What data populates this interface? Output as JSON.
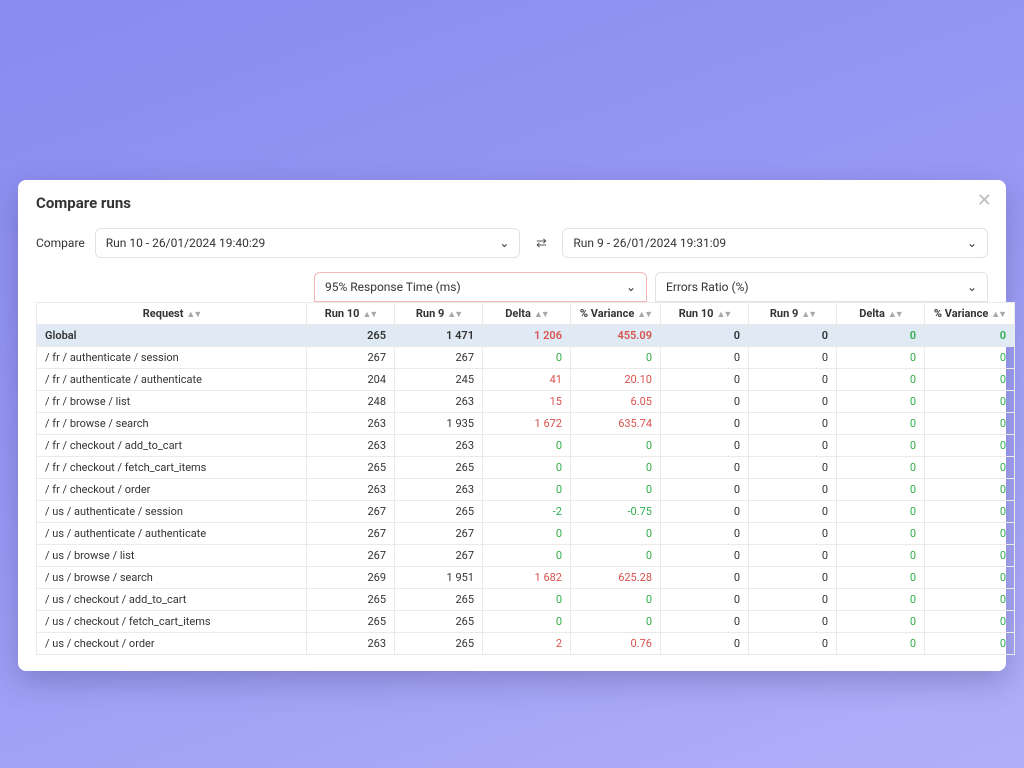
{
  "title": "Compare runs",
  "compareLabel": "Compare",
  "runA": "Run 10 - 26/01/2024 19:40:29",
  "runB": "Run 9 - 26/01/2024 19:31:09",
  "metricA": "95% Response Time (ms)",
  "metricB": "Errors Ratio (%)",
  "headers": {
    "request": "Request",
    "run10": "Run 10",
    "run9": "Run 9",
    "delta": "Delta",
    "variance": "% Variance"
  },
  "columnWidths": {
    "request": 270,
    "run": 88,
    "delta": 88,
    "variance": 90
  },
  "colors": {
    "pageBgFrom": "#8a8af0",
    "pageBgTo": "#b0b0f8",
    "panelBg": "#ffffff",
    "border": "#eaeaea",
    "selectBorder": "#e2e2e2",
    "metricLeftBorder": "#f4b6b6",
    "globalRowBg": "#dfeaf4",
    "text": "#333333",
    "positive": "#2fae4e",
    "negative": "#d9534f",
    "sortIcon": "#a8a8a8",
    "closeIcon": "#bdbdbd"
  },
  "typography": {
    "titleSize": 15,
    "titleWeight": 700,
    "bodySize": 12,
    "tableSize": 11
  },
  "rows": [
    {
      "request": "Global",
      "global": true,
      "a": {
        "run10": "265",
        "run9": "1 471",
        "delta": "1 206",
        "deltaSign": "neg",
        "variance": "455.09",
        "varSign": "neg"
      },
      "b": {
        "run10": "0",
        "run9": "0",
        "delta": "0",
        "deltaSign": "pos",
        "variance": "0",
        "varSign": "pos"
      }
    },
    {
      "request": "/ fr / authenticate / session",
      "a": {
        "run10": "267",
        "run9": "267",
        "delta": "0",
        "deltaSign": "pos",
        "variance": "0",
        "varSign": "pos"
      },
      "b": {
        "run10": "0",
        "run9": "0",
        "delta": "0",
        "deltaSign": "pos",
        "variance": "0",
        "varSign": "pos"
      }
    },
    {
      "request": "/ fr / authenticate / authenticate",
      "a": {
        "run10": "204",
        "run9": "245",
        "delta": "41",
        "deltaSign": "neg",
        "variance": "20.10",
        "varSign": "neg"
      },
      "b": {
        "run10": "0",
        "run9": "0",
        "delta": "0",
        "deltaSign": "pos",
        "variance": "0",
        "varSign": "pos"
      }
    },
    {
      "request": "/ fr / browse / list",
      "a": {
        "run10": "248",
        "run9": "263",
        "delta": "15",
        "deltaSign": "neg",
        "variance": "6.05",
        "varSign": "neg"
      },
      "b": {
        "run10": "0",
        "run9": "0",
        "delta": "0",
        "deltaSign": "pos",
        "variance": "0",
        "varSign": "pos"
      }
    },
    {
      "request": "/ fr / browse / search",
      "a": {
        "run10": "263",
        "run9": "1 935",
        "delta": "1 672",
        "deltaSign": "neg",
        "variance": "635.74",
        "varSign": "neg"
      },
      "b": {
        "run10": "0",
        "run9": "0",
        "delta": "0",
        "deltaSign": "pos",
        "variance": "0",
        "varSign": "pos"
      }
    },
    {
      "request": "/ fr / checkout / add_to_cart",
      "a": {
        "run10": "263",
        "run9": "263",
        "delta": "0",
        "deltaSign": "pos",
        "variance": "0",
        "varSign": "pos"
      },
      "b": {
        "run10": "0",
        "run9": "0",
        "delta": "0",
        "deltaSign": "pos",
        "variance": "0",
        "varSign": "pos"
      }
    },
    {
      "request": "/ fr / checkout / fetch_cart_items",
      "a": {
        "run10": "265",
        "run9": "265",
        "delta": "0",
        "deltaSign": "pos",
        "variance": "0",
        "varSign": "pos"
      },
      "b": {
        "run10": "0",
        "run9": "0",
        "delta": "0",
        "deltaSign": "pos",
        "variance": "0",
        "varSign": "pos"
      }
    },
    {
      "request": "/ fr / checkout / order",
      "a": {
        "run10": "263",
        "run9": "263",
        "delta": "0",
        "deltaSign": "pos",
        "variance": "0",
        "varSign": "pos"
      },
      "b": {
        "run10": "0",
        "run9": "0",
        "delta": "0",
        "deltaSign": "pos",
        "variance": "0",
        "varSign": "pos"
      }
    },
    {
      "request": "/ us / authenticate / session",
      "a": {
        "run10": "267",
        "run9": "265",
        "delta": "-2",
        "deltaSign": "pos",
        "variance": "-0.75",
        "varSign": "pos"
      },
      "b": {
        "run10": "0",
        "run9": "0",
        "delta": "0",
        "deltaSign": "pos",
        "variance": "0",
        "varSign": "pos"
      }
    },
    {
      "request": "/ us / authenticate / authenticate",
      "a": {
        "run10": "267",
        "run9": "267",
        "delta": "0",
        "deltaSign": "pos",
        "variance": "0",
        "varSign": "pos"
      },
      "b": {
        "run10": "0",
        "run9": "0",
        "delta": "0",
        "deltaSign": "pos",
        "variance": "0",
        "varSign": "pos"
      }
    },
    {
      "request": "/ us / browse / list",
      "a": {
        "run10": "267",
        "run9": "267",
        "delta": "0",
        "deltaSign": "pos",
        "variance": "0",
        "varSign": "pos"
      },
      "b": {
        "run10": "0",
        "run9": "0",
        "delta": "0",
        "deltaSign": "pos",
        "variance": "0",
        "varSign": "pos"
      }
    },
    {
      "request": "/ us / browse / search",
      "a": {
        "run10": "269",
        "run9": "1 951",
        "delta": "1 682",
        "deltaSign": "neg",
        "variance": "625.28",
        "varSign": "neg"
      },
      "b": {
        "run10": "0",
        "run9": "0",
        "delta": "0",
        "deltaSign": "pos",
        "variance": "0",
        "varSign": "pos"
      }
    },
    {
      "request": "/ us / checkout / add_to_cart",
      "a": {
        "run10": "265",
        "run9": "265",
        "delta": "0",
        "deltaSign": "pos",
        "variance": "0",
        "varSign": "pos"
      },
      "b": {
        "run10": "0",
        "run9": "0",
        "delta": "0",
        "deltaSign": "pos",
        "variance": "0",
        "varSign": "pos"
      }
    },
    {
      "request": "/ us / checkout / fetch_cart_items",
      "a": {
        "run10": "265",
        "run9": "265",
        "delta": "0",
        "deltaSign": "pos",
        "variance": "0",
        "varSign": "pos"
      },
      "b": {
        "run10": "0",
        "run9": "0",
        "delta": "0",
        "deltaSign": "pos",
        "variance": "0",
        "varSign": "pos"
      }
    },
    {
      "request": "/ us / checkout / order",
      "a": {
        "run10": "263",
        "run9": "265",
        "delta": "2",
        "deltaSign": "neg",
        "variance": "0.76",
        "varSign": "neg"
      },
      "b": {
        "run10": "0",
        "run9": "0",
        "delta": "0",
        "deltaSign": "pos",
        "variance": "0",
        "varSign": "pos"
      }
    }
  ]
}
